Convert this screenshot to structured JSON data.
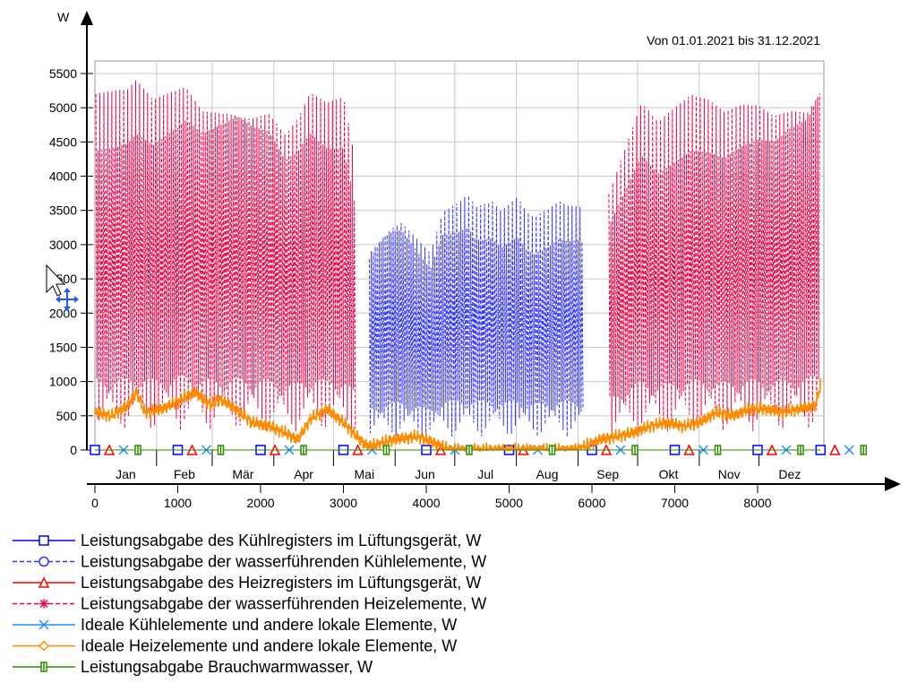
{
  "chart_data": {
    "type": "line",
    "title": "Von 01.01.2021 bis 31.12.2021",
    "ylabel": "W",
    "xlabel": "",
    "xlim": [
      0,
      8760
    ],
    "ylim": [
      0,
      5700
    ],
    "x_ticks": [
      0,
      1000,
      2000,
      3000,
      4000,
      5000,
      6000,
      7000,
      8000
    ],
    "y_ticks": [
      0,
      500,
      1000,
      1500,
      2000,
      2500,
      3000,
      3500,
      4000,
      4500,
      5000,
      5500
    ],
    "months": [
      {
        "label": "Jan",
        "start": 0,
        "end": 744
      },
      {
        "label": "Feb",
        "start": 744,
        "end": 1416
      },
      {
        "label": "Mär",
        "start": 1416,
        "end": 2160
      },
      {
        "label": "Apr",
        "start": 2160,
        "end": 2880
      },
      {
        "label": "Mai",
        "start": 2880,
        "end": 3624
      },
      {
        "label": "Jun",
        "start": 3624,
        "end": 4344
      },
      {
        "label": "Jul",
        "start": 4344,
        "end": 5088
      },
      {
        "label": "Aug",
        "start": 5088,
        "end": 5832
      },
      {
        "label": "Sep",
        "start": 5832,
        "end": 6552
      },
      {
        "label": "Okt",
        "start": 6552,
        "end": 7296
      },
      {
        "label": "Nov",
        "start": 7296,
        "end": 8016
      },
      {
        "label": "Dez",
        "start": 8016,
        "end": 8760
      }
    ],
    "grid": true,
    "legend_position": "bottom",
    "series": [
      {
        "name": "Leistungsabgabe des Kühlregisters im Lüftungsgerät, W",
        "color": "#0000ff",
        "dash": "solid",
        "marker": "square",
        "x": [
          0,
          1000,
          2000,
          3000,
          4000,
          5000,
          6000,
          7000,
          8000,
          8760
        ],
        "values": [
          0,
          0,
          0,
          0,
          0,
          0,
          0,
          0,
          0,
          0
        ]
      },
      {
        "name": "Leistungsabgabe der wasserführenden Kühlelemente, W",
        "color": "#3333ff",
        "dash": "dashed",
        "marker": "circle",
        "x": [
          3300,
          3350,
          3500,
          3600,
          3700,
          4050,
          4200,
          4300,
          4400,
          4500,
          4600,
          4800,
          4900,
          5000,
          5100,
          5200,
          5300,
          5500,
          5600,
          5700,
          5850,
          5900
        ],
        "values": [
          3050,
          3150,
          3400,
          3500,
          3550,
          3000,
          3600,
          3650,
          3700,
          3800,
          3600,
          3650,
          3500,
          3600,
          3700,
          3500,
          3400,
          3550,
          3650,
          3600,
          3600,
          3550
        ]
      },
      {
        "name": "Leistungsabgabe des Heizregisters im Lüftungsgerät, W",
        "color": "#ff0000",
        "dash": "solid",
        "marker": "triangle",
        "x": [
          0,
          1000,
          2000,
          3000,
          4000,
          5000,
          6000,
          7000,
          8000,
          8760
        ],
        "values": [
          0,
          0,
          0,
          0,
          0,
          0,
          0,
          0,
          0,
          0
        ]
      },
      {
        "name": "Leistungsabgabe der wasserführenden Heizelemente, W",
        "color": "#ee0044",
        "dash": "dashed",
        "marker": "star",
        "x": [
          0,
          200,
          400,
          500,
          700,
          900,
          1100,
          1300,
          1500,
          1700,
          1900,
          2100,
          2300,
          2450,
          2600,
          2800,
          3000,
          3150,
          6200,
          6600,
          6800,
          7000,
          7200,
          7400,
          7600,
          7800,
          8000,
          8200,
          8400,
          8600,
          8760
        ],
        "values": [
          5200,
          5250,
          5300,
          5450,
          5200,
          5350,
          5500,
          5200,
          5250,
          5300,
          5200,
          5200,
          4800,
          5000,
          5350,
          5150,
          5200,
          4200,
          3800,
          5100,
          4800,
          5000,
          5200,
          5150,
          5000,
          5150,
          5200,
          5100,
          5250,
          5300,
          5700
        ]
      },
      {
        "name": "Ideale Kühlelemente und andere lokale Elemente, W",
        "color": "#1e90ff",
        "dash": "solid",
        "marker": "x",
        "x": [
          0,
          1000,
          2000,
          3000,
          4000,
          5000,
          6000,
          7000,
          8000,
          8760
        ],
        "values": [
          0,
          0,
          0,
          0,
          0,
          0,
          0,
          0,
          0,
          0
        ]
      },
      {
        "name": "Ideale Heizelemente und andere lokale Elemente, W",
        "color": "#ff8c00",
        "dash": "solid",
        "marker": "diamond",
        "x": [
          0,
          200,
          400,
          500,
          600,
          800,
          1000,
          1200,
          1400,
          1500,
          1700,
          1900,
          2100,
          2300,
          2450,
          2600,
          2800,
          3000,
          3200,
          3300,
          3600,
          3900,
          4100,
          4300,
          5000,
          5800,
          6100,
          6300,
          6500,
          6700,
          6900,
          7100,
          7300,
          7500,
          7700,
          7900,
          8100,
          8300,
          8500,
          8700,
          8760
        ],
        "values": [
          550,
          500,
          650,
          850,
          550,
          600,
          700,
          850,
          650,
          750,
          600,
          400,
          350,
          250,
          150,
          450,
          600,
          400,
          150,
          50,
          150,
          200,
          100,
          0,
          0,
          0,
          150,
          200,
          250,
          350,
          400,
          350,
          400,
          550,
          500,
          600,
          600,
          550,
          600,
          650,
          950
        ]
      },
      {
        "name": "Leistungsabgabe Brauchwarmwasser, W",
        "color": "#2e8b00",
        "dash": "solid",
        "marker": "bar",
        "x": [
          0,
          1000,
          2000,
          3000,
          4000,
          5000,
          6000,
          7000,
          8000,
          8760
        ],
        "values": [
          0,
          0,
          0,
          0,
          0,
          0,
          0,
          0,
          0,
          0
        ]
      }
    ]
  }
}
